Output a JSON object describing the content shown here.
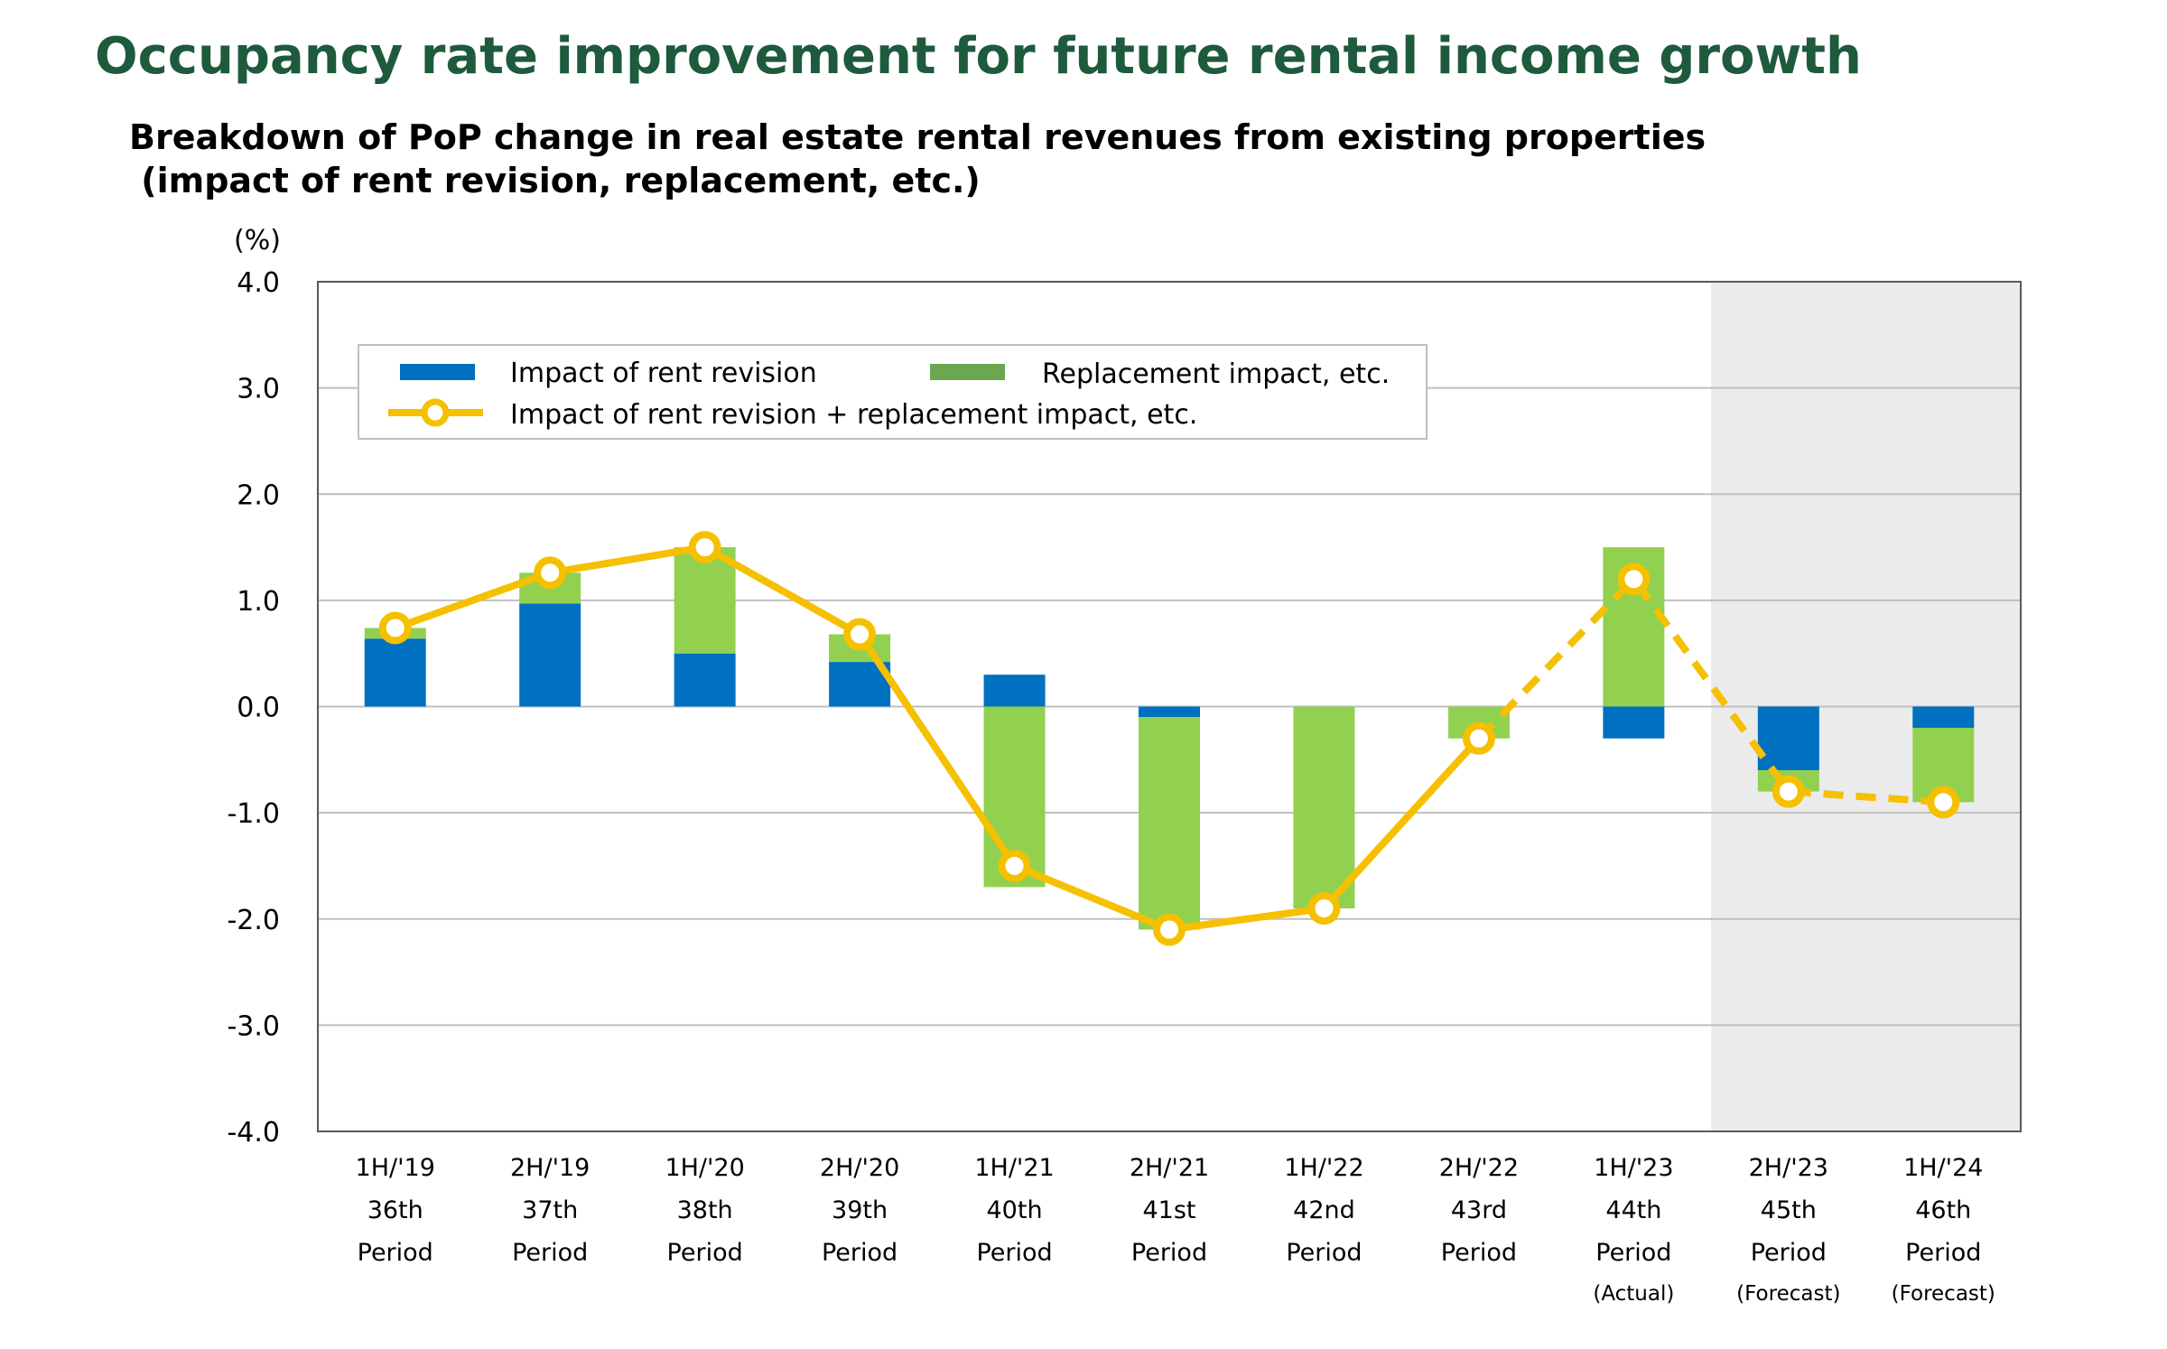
{
  "title": "Occupancy rate improvement for future rental income growth",
  "subtitle": {
    "line1": "Breakdown of PoP change in real estate rental revenues from existing properties",
    "line2": " (impact of rent revision, replacement, etc.)"
  },
  "chart_data": {
    "type": "bar",
    "stacked": true,
    "y_unit_label": "(%)",
    "ylim": [
      -4.0,
      4.0
    ],
    "yticks": [
      "4.0",
      "3.0",
      "2.0",
      "1.0",
      "0.0",
      "-1.0",
      "-2.0",
      "-3.0",
      "-4.0"
    ],
    "ytick_values": [
      4,
      3,
      2,
      1,
      0,
      -1,
      -2,
      -3,
      -4
    ],
    "grid": true,
    "legend_position": "top-left",
    "categories": [
      {
        "line1": "1H/'19",
        "line2": "36th",
        "line3": "Period",
        "note": ""
      },
      {
        "line1": "2H/'19",
        "line2": "37th",
        "line3": "Period",
        "note": ""
      },
      {
        "line1": "1H/'20",
        "line2": "38th",
        "line3": "Period",
        "note": ""
      },
      {
        "line1": "2H/'20",
        "line2": "39th",
        "line3": "Period",
        "note": ""
      },
      {
        "line1": "1H/'21",
        "line2": "40th",
        "line3": "Period",
        "note": ""
      },
      {
        "line1": "2H/'21",
        "line2": "41st",
        "line3": "Period",
        "note": ""
      },
      {
        "line1": "1H/'22",
        "line2": "42nd",
        "line3": "Period",
        "note": ""
      },
      {
        "line1": "2H/'22",
        "line2": "43rd",
        "line3": "Period",
        "note": ""
      },
      {
        "line1": "1H/'23",
        "line2": "44th",
        "line3": "Period",
        "note": "(Actual)"
      },
      {
        "line1": "2H/'23",
        "line2": "45th",
        "line3": "Period",
        "note": "(Forecast)"
      },
      {
        "line1": "1H/'24",
        "line2": "46th",
        "line3": "Period",
        "note": "(Forecast)"
      }
    ],
    "series": [
      {
        "name": "Impact of rent revision",
        "kind": "bar",
        "color": "#0070c0",
        "values": [
          0.64,
          0.97,
          0.5,
          0.42,
          0.3,
          -0.1,
          0.0,
          0.0,
          -0.3,
          -0.6,
          -0.2
        ]
      },
      {
        "name": "Replacement impact, etc.",
        "kind": "bar",
        "color": "#92d050",
        "values": [
          0.1,
          0.29,
          1.0,
          0.26,
          -1.7,
          -2.0,
          -1.9,
          -0.3,
          1.5,
          -0.2,
          -0.7
        ]
      },
      {
        "name": "Impact of rent revision + replacement impact, etc.",
        "kind": "line",
        "color": "#f5c000",
        "values": [
          0.74,
          1.26,
          1.5,
          0.68,
          -1.5,
          -2.1,
          -1.9,
          -0.3,
          1.2,
          -0.8,
          -0.9
        ],
        "dashed_from_index": 7
      }
    ],
    "shaded_region_categories": [
      9,
      10
    ],
    "shaded_region_color": "#ebebeb",
    "legend_box_color": "#6aa84f"
  }
}
